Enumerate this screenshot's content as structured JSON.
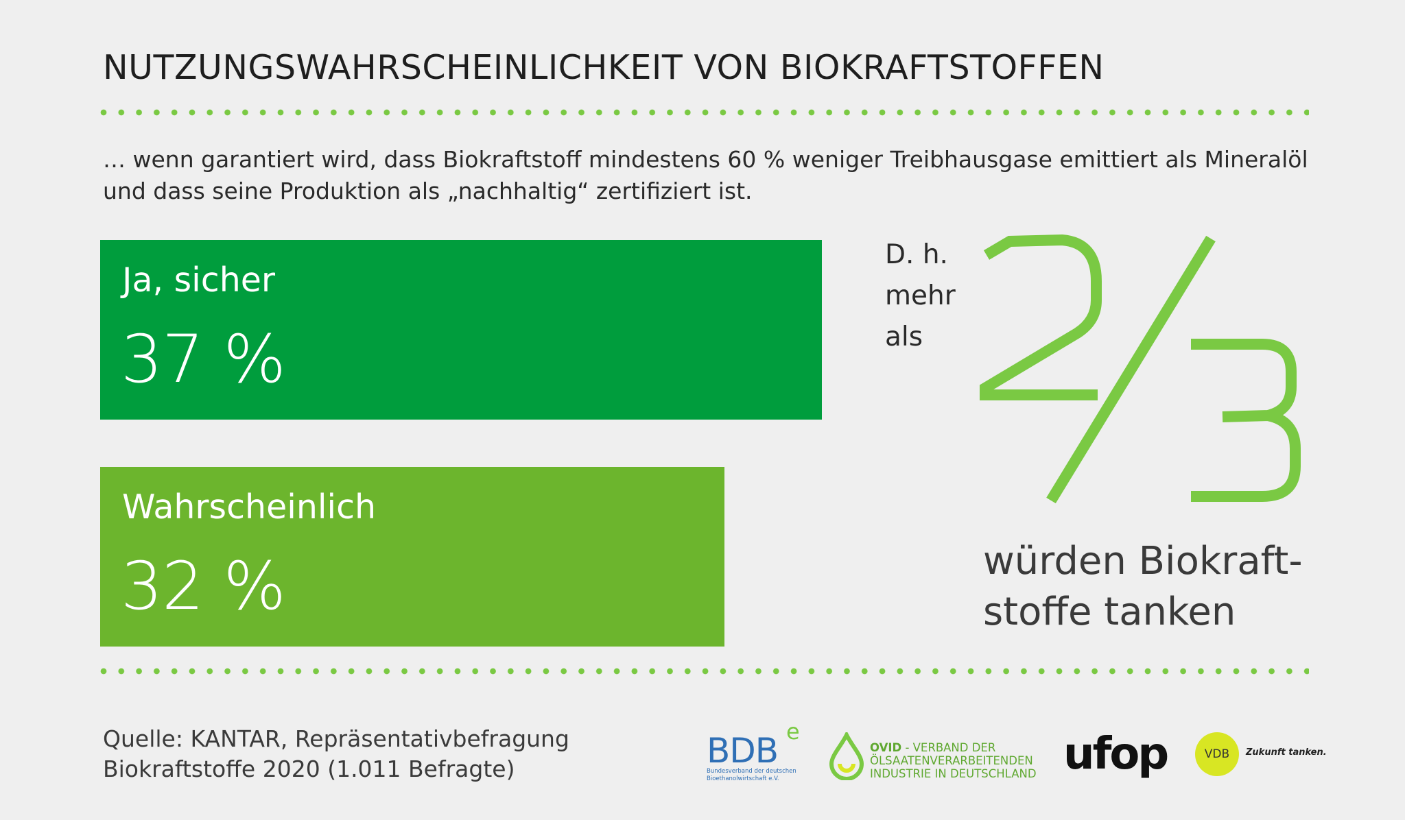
{
  "title": "NUTZUNGSWAHRSCHEINLICHKEIT VON BIOKRAFTSTOFFEN",
  "subtitle": {
    "line1": "… wenn garantiert wird, dass Biokraftstoff mindestens 60 % weniger Treibhausgase emittiert als Mineralöl",
    "line2": "und dass seine Produktion als „nachhaltig“ zertifiziert ist."
  },
  "chart_data": {
    "type": "bar",
    "orientation": "horizontal",
    "categories": [
      "Ja, sicher",
      "Wahrscheinlich"
    ],
    "values": [
      37,
      32
    ],
    "value_labels": [
      "37 %",
      "32 %"
    ],
    "colors": [
      "#009d3d",
      "#6cb52d"
    ],
    "xlim": [
      0,
      100
    ],
    "grid": false,
    "legend": "none"
  },
  "highlight": {
    "prefix_lines": [
      "D. h.",
      "mehr",
      "als"
    ],
    "fraction": "2/3",
    "color": "#7ac943",
    "conclusion_lines": [
      "würden Biokraft-",
      "stoffe tanken"
    ]
  },
  "source": {
    "line1": "Quelle: KANTAR, Repräsentativbefragung",
    "line2": "Biokraftstoffe 2020 (1.011 Befragte)"
  },
  "logos": {
    "bdb": {
      "mark": "BDB",
      "sup": "e",
      "small1": "Bundesverband der deutschen",
      "small2": "Bioethanolwirtschaft e.V."
    },
    "ovid": {
      "name": "OVID",
      "line1": " - VERBAND DER",
      "line2": "ÖLSAATENVERARBEITENDEN",
      "line3": "INDUSTRIE IN DEUTSCHLAND"
    },
    "ufop": "ufop",
    "vdb": {
      "mark": "VDB",
      "tagline": "Zukunft tanken."
    }
  }
}
